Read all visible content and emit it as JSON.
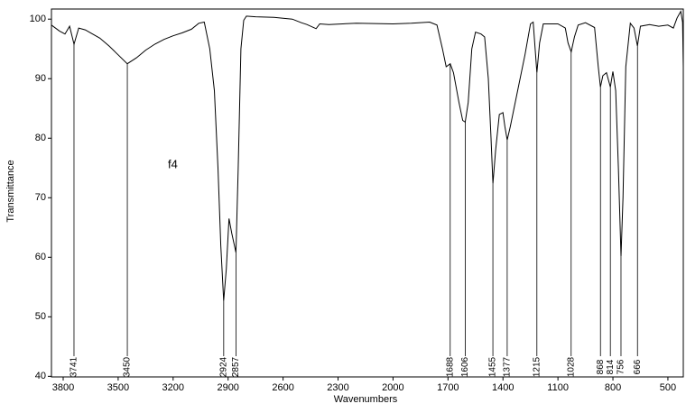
{
  "chart_data": {
    "type": "line",
    "xlabel": "Wavenumbers",
    "ylabel": "Transmittance",
    "annotation": "f4",
    "color": "#000000",
    "xlim": [
      3864,
      416
    ],
    "ylim": [
      39.9,
      101.7
    ],
    "xticks": [
      3800,
      3500,
      3200,
      2900,
      2600,
      2300,
      2000,
      1700,
      1400,
      1100,
      800,
      500
    ],
    "yticks": [
      40,
      50,
      60,
      70,
      80,
      90,
      100
    ],
    "x": [
      3864,
      3820,
      3790,
      3765,
      3741,
      3715,
      3680,
      3640,
      3600,
      3550,
      3500,
      3450,
      3400,
      3350,
      3300,
      3250,
      3200,
      3150,
      3100,
      3060,
      3030,
      3000,
      2975,
      2955,
      2940,
      2924,
      2910,
      2895,
      2880,
      2857,
      2845,
      2830,
      2815,
      2800,
      2750,
      2650,
      2550,
      2500,
      2470,
      2420,
      2400,
      2350,
      2200,
      2000,
      1900,
      1800,
      1760,
      1730,
      1710,
      1688,
      1670,
      1640,
      1620,
      1606,
      1590,
      1570,
      1550,
      1520,
      1500,
      1480,
      1465,
      1455,
      1440,
      1420,
      1400,
      1390,
      1377,
      1360,
      1320,
      1280,
      1250,
      1235,
      1215,
      1200,
      1180,
      1100,
      1060,
      1045,
      1028,
      1010,
      990,
      950,
      900,
      880,
      868,
      855,
      835,
      814,
      800,
      785,
      770,
      756,
      745,
      730,
      705,
      685,
      666,
      650,
      600,
      550,
      500,
      470,
      450,
      430,
      420,
      416
    ],
    "values": [
      99.0,
      98.0,
      97.5,
      98.8,
      95.8,
      98.5,
      98.2,
      97.5,
      96.8,
      95.5,
      94.0,
      92.5,
      93.5,
      94.8,
      95.8,
      96.6,
      97.2,
      97.7,
      98.3,
      99.3,
      99.5,
      95.0,
      88.0,
      75.0,
      62.0,
      52.7,
      58.0,
      66.5,
      64.0,
      60.8,
      75.0,
      95.0,
      99.8,
      100.5,
      100.4,
      100.3,
      100.0,
      99.4,
      99.1,
      98.4,
      99.2,
      99.1,
      99.3,
      99.2,
      99.3,
      99.5,
      99.0,
      95.0,
      92.0,
      92.5,
      91.0,
      86.0,
      83.0,
      82.7,
      86.0,
      95.0,
      97.8,
      97.5,
      97.0,
      90.0,
      80.0,
      72.4,
      78.0,
      84.0,
      84.3,
      82.0,
      79.7,
      82.0,
      88.0,
      94.0,
      99.2,
      99.5,
      91.0,
      96.0,
      99.2,
      99.2,
      98.5,
      96.0,
      94.5,
      97.0,
      99.0,
      99.4,
      98.6,
      92.0,
      88.6,
      90.5,
      91.0,
      88.6,
      91.2,
      88.0,
      75.0,
      60.2,
      70.0,
      92.0,
      99.3,
      98.5,
      95.5,
      98.8,
      99.1,
      98.8,
      99.0,
      98.5,
      100.2,
      101.3,
      99.5,
      92.0
    ],
    "peaks": [
      3741,
      3450,
      2924,
      2857,
      1688,
      1606,
      1455,
      1377,
      1215,
      1028,
      868,
      814,
      756,
      666
    ]
  }
}
